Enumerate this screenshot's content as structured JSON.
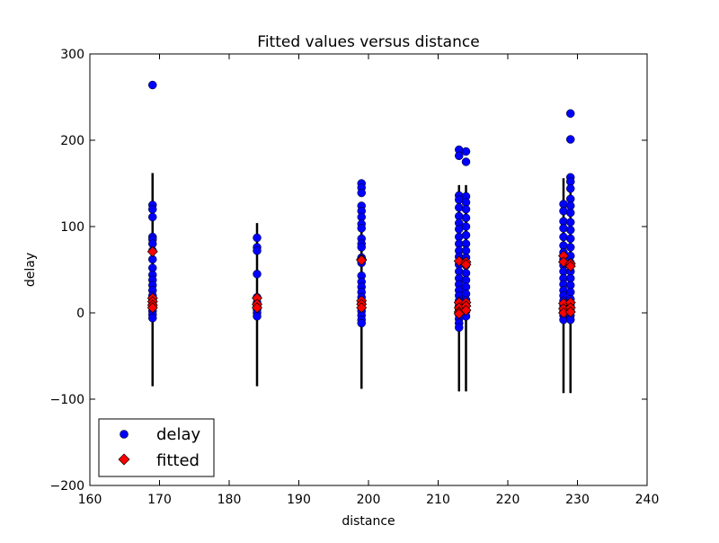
{
  "chart_data": {
    "type": "scatter",
    "title": "Fitted values versus distance",
    "xlabel": "distance",
    "ylabel": "delay",
    "xlim": [
      160,
      240
    ],
    "ylim": [
      -200,
      300
    ],
    "xticks": [
      "160",
      "170",
      "180",
      "190",
      "200",
      "210",
      "220",
      "230",
      "240"
    ],
    "yticks": [
      "300",
      "200",
      "100",
      "0",
      "−100",
      "−200"
    ],
    "grid": false,
    "legend_position": "bottom-left",
    "series": [
      {
        "name": "delay",
        "marker": "circle",
        "color": "#0000ff",
        "points": [
          [
            169,
            264
          ],
          [
            169,
            125
          ],
          [
            169,
            120
          ],
          [
            169,
            111
          ],
          [
            169,
            88
          ],
          [
            169,
            85
          ],
          [
            169,
            80
          ],
          [
            169,
            72
          ],
          [
            169,
            62
          ],
          [
            169,
            52
          ],
          [
            169,
            44
          ],
          [
            169,
            38
          ],
          [
            169,
            32
          ],
          [
            169,
            26
          ],
          [
            169,
            20
          ],
          [
            169,
            15
          ],
          [
            169,
            10
          ],
          [
            169,
            6
          ],
          [
            169,
            2
          ],
          [
            169,
            -2
          ],
          [
            169,
            -6
          ],
          [
            184,
            87
          ],
          [
            184,
            76
          ],
          [
            184,
            72
          ],
          [
            184,
            45
          ],
          [
            184,
            18
          ],
          [
            184,
            12
          ],
          [
            184,
            8
          ],
          [
            184,
            4
          ],
          [
            184,
            0
          ],
          [
            184,
            -4
          ],
          [
            199,
            150
          ],
          [
            199,
            145
          ],
          [
            199,
            139
          ],
          [
            199,
            124
          ],
          [
            199,
            118
          ],
          [
            199,
            111
          ],
          [
            199,
            103
          ],
          [
            199,
            98
          ],
          [
            199,
            86
          ],
          [
            199,
            80
          ],
          [
            199,
            76
          ],
          [
            199,
            64
          ],
          [
            199,
            58
          ],
          [
            199,
            43
          ],
          [
            199,
            36
          ],
          [
            199,
            30
          ],
          [
            199,
            24
          ],
          [
            199,
            18
          ],
          [
            199,
            12
          ],
          [
            199,
            6
          ],
          [
            199,
            2
          ],
          [
            199,
            -3
          ],
          [
            199,
            -8
          ],
          [
            199,
            -12
          ],
          [
            213,
            189
          ],
          [
            213,
            182
          ],
          [
            213,
            136
          ],
          [
            213,
            131
          ],
          [
            213,
            122
          ],
          [
            213,
            112
          ],
          [
            213,
            104
          ],
          [
            213,
            97
          ],
          [
            213,
            88
          ],
          [
            213,
            80
          ],
          [
            213,
            72
          ],
          [
            213,
            65
          ],
          [
            213,
            56
          ],
          [
            213,
            48
          ],
          [
            213,
            40
          ],
          [
            213,
            33
          ],
          [
            213,
            26
          ],
          [
            213,
            20
          ],
          [
            213,
            14
          ],
          [
            213,
            8
          ],
          [
            213,
            3
          ],
          [
            213,
            -2
          ],
          [
            213,
            -7
          ],
          [
            213,
            -12
          ],
          [
            213,
            -17
          ],
          [
            214,
            187
          ],
          [
            214,
            175
          ],
          [
            214,
            135
          ],
          [
            214,
            128
          ],
          [
            214,
            120
          ],
          [
            214,
            110
          ],
          [
            214,
            100
          ],
          [
            214,
            90
          ],
          [
            214,
            80
          ],
          [
            214,
            72
          ],
          [
            214,
            64
          ],
          [
            214,
            55
          ],
          [
            214,
            46
          ],
          [
            214,
            38
          ],
          [
            214,
            30
          ],
          [
            214,
            22
          ],
          [
            214,
            15
          ],
          [
            214,
            8
          ],
          [
            214,
            2
          ],
          [
            214,
            -4
          ],
          [
            228,
            126
          ],
          [
            228,
            118
          ],
          [
            228,
            106
          ],
          [
            228,
            98
          ],
          [
            228,
            88
          ],
          [
            228,
            78
          ],
          [
            228,
            70
          ],
          [
            228,
            62
          ],
          [
            228,
            55
          ],
          [
            228,
            48
          ],
          [
            228,
            40
          ],
          [
            228,
            33
          ],
          [
            228,
            26
          ],
          [
            228,
            20
          ],
          [
            228,
            14
          ],
          [
            228,
            8
          ],
          [
            228,
            2
          ],
          [
            228,
            -3
          ],
          [
            228,
            -8
          ],
          [
            229,
            231
          ],
          [
            229,
            201
          ],
          [
            229,
            157
          ],
          [
            229,
            152
          ],
          [
            229,
            144
          ],
          [
            229,
            132
          ],
          [
            229,
            124
          ],
          [
            229,
            116
          ],
          [
            229,
            105
          ],
          [
            229,
            96
          ],
          [
            229,
            86
          ],
          [
            229,
            76
          ],
          [
            229,
            66
          ],
          [
            229,
            58
          ],
          [
            229,
            48
          ],
          [
            229,
            40
          ],
          [
            229,
            32
          ],
          [
            229,
            24
          ],
          [
            229,
            16
          ],
          [
            229,
            9
          ],
          [
            229,
            3
          ],
          [
            229,
            -3
          ],
          [
            229,
            -8
          ]
        ]
      },
      {
        "name": "fitted",
        "marker": "diamond",
        "color": "#ff0000",
        "points": [
          [
            169,
            71
          ],
          [
            169,
            17
          ],
          [
            169,
            13
          ],
          [
            169,
            9
          ],
          [
            169,
            6
          ],
          [
            184,
            17
          ],
          [
            184,
            10
          ],
          [
            184,
            6
          ],
          [
            199,
            62
          ],
          [
            199,
            61
          ],
          [
            199,
            14
          ],
          [
            199,
            10
          ],
          [
            199,
            6
          ],
          [
            213,
            60
          ],
          [
            213,
            12
          ],
          [
            213,
            6
          ],
          [
            213,
            1
          ],
          [
            213,
            -1
          ],
          [
            214,
            59
          ],
          [
            214,
            56
          ],
          [
            214,
            12
          ],
          [
            214,
            8
          ],
          [
            214,
            3
          ],
          [
            228,
            66
          ],
          [
            228,
            59
          ],
          [
            228,
            11
          ],
          [
            228,
            5
          ],
          [
            228,
            0
          ],
          [
            229,
            57
          ],
          [
            229,
            54
          ],
          [
            229,
            12
          ],
          [
            229,
            6
          ],
          [
            229,
            1
          ]
        ]
      }
    ],
    "residual_ranges": [
      {
        "x": 169,
        "low": -85,
        "high": 162
      },
      {
        "x": 184,
        "low": -85,
        "high": 104
      },
      {
        "x": 199,
        "low": -88,
        "high": 128
      },
      {
        "x": 213,
        "low": -91,
        "high": 148
      },
      {
        "x": 214,
        "low": -91,
        "high": 148
      },
      {
        "x": 228,
        "low": -93,
        "high": 156
      },
      {
        "x": 229,
        "low": -93,
        "high": 150
      }
    ]
  }
}
